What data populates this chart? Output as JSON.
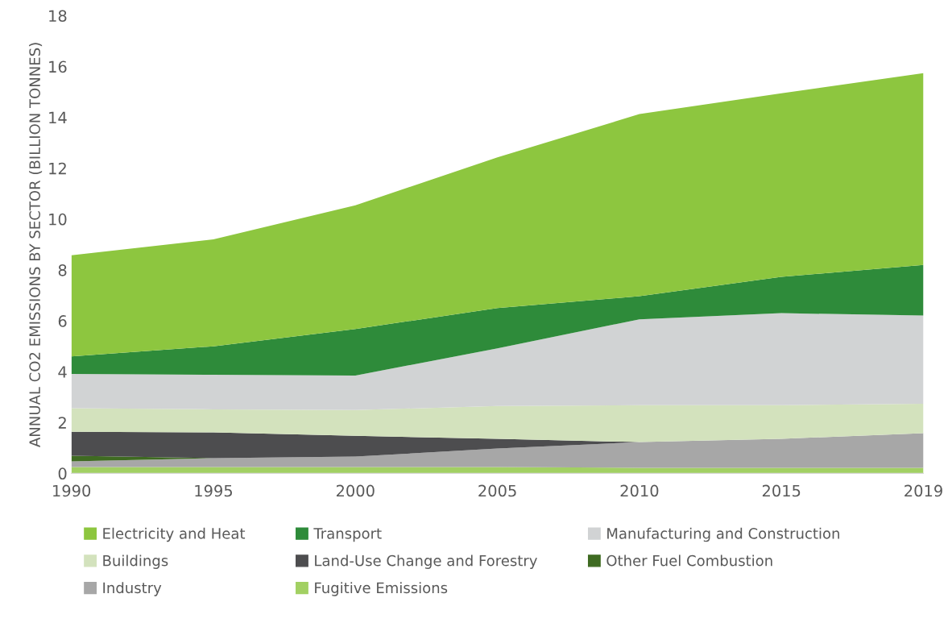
{
  "chart_data": {
    "type": "area",
    "stacked": true,
    "ylabel": "ANNUAL CO2 EMISSIONS BY SECTOR (BILLION TONNES)",
    "categories": [
      "1990",
      "1995",
      "2000",
      "2005",
      "2010",
      "2015",
      "2019"
    ],
    "ylim": [
      0,
      18
    ],
    "yticks": [
      0,
      2,
      4,
      6,
      8,
      10,
      12,
      14,
      16,
      18
    ],
    "grid": false,
    "legend": "bottom",
    "series": [
      {
        "name": "Fugitive Emissions",
        "color": "#a2d063",
        "values": [
          0.25,
          0.25,
          0.25,
          0.25,
          0.22,
          0.22,
          0.22
        ]
      },
      {
        "name": "Industry",
        "color": "#a7a7a7",
        "values": [
          0.22,
          0.35,
          0.41,
          0.73,
          1.01,
          1.14,
          1.36
        ]
      },
      {
        "name": "Other Fuel Combustion",
        "color": "#3f6b22",
        "values": [
          0.22,
          0,
          0,
          0,
          0,
          0,
          0
        ]
      },
      {
        "name": "Land-Use Change and Forestry",
        "color": "#4d4d4f",
        "values": [
          0.95,
          1.01,
          0.82,
          0.38,
          0,
          0,
          0
        ]
      },
      {
        "name": "Buildings",
        "color": "#d3e2bd",
        "values": [
          0.92,
          0.91,
          1.01,
          1.29,
          1.45,
          1.32,
          1.16
        ]
      },
      {
        "name": "Manufacturing and Construction",
        "color": "#d1d3d4",
        "values": [
          1.35,
          1.36,
          1.36,
          2.27,
          3.38,
          3.62,
          3.47
        ]
      },
      {
        "name": "Transport",
        "color": "#2e8b3a",
        "values": [
          0.69,
          1.12,
          1.83,
          1.58,
          0.91,
          1.43,
          1.99
        ]
      },
      {
        "name": "Electricity and Heat",
        "color": "#8dc63f",
        "values": [
          3.98,
          4.2,
          4.86,
          5.93,
          7.16,
          7.22,
          7.54
        ]
      }
    ]
  }
}
